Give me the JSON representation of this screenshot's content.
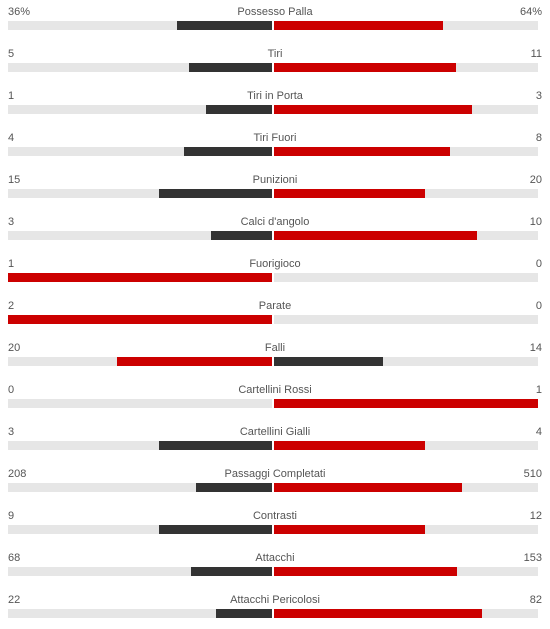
{
  "colors": {
    "leader": "#cc0000",
    "trailer": "#333333",
    "track": "#e6e6e6",
    "text": "#555555"
  },
  "stats": [
    {
      "name": "Possesso Palla",
      "home_label": "36%",
      "away_label": "64%",
      "home": 36,
      "away": 64
    },
    {
      "name": "Tiri",
      "home_label": "5",
      "away_label": "11",
      "home": 5,
      "away": 11
    },
    {
      "name": "Tiri in Porta",
      "home_label": "1",
      "away_label": "3",
      "home": 1,
      "away": 3
    },
    {
      "name": "Tiri Fuori",
      "home_label": "4",
      "away_label": "8",
      "home": 4,
      "away": 8
    },
    {
      "name": "Punizioni",
      "home_label": "15",
      "away_label": "20",
      "home": 15,
      "away": 20
    },
    {
      "name": "Calci d'angolo",
      "home_label": "3",
      "away_label": "10",
      "home": 3,
      "away": 10
    },
    {
      "name": "Fuorigioco",
      "home_label": "1",
      "away_label": "0",
      "home": 1,
      "away": 0
    },
    {
      "name": "Parate",
      "home_label": "2",
      "away_label": "0",
      "home": 2,
      "away": 0
    },
    {
      "name": "Falli",
      "home_label": "20",
      "away_label": "14",
      "home": 20,
      "away": 14
    },
    {
      "name": "Cartellini Rossi",
      "home_label": "0",
      "away_label": "1",
      "home": 0,
      "away": 1
    },
    {
      "name": "Cartellini Gialli",
      "home_label": "3",
      "away_label": "4",
      "home": 3,
      "away": 4
    },
    {
      "name": "Passaggi Completati",
      "home_label": "208",
      "away_label": "510",
      "home": 208,
      "away": 510
    },
    {
      "name": "Contrasti",
      "home_label": "9",
      "away_label": "12",
      "home": 9,
      "away": 12
    },
    {
      "name": "Attacchi",
      "home_label": "68",
      "away_label": "153",
      "home": 68,
      "away": 153
    },
    {
      "name": "Attacchi Pericolosi",
      "home_label": "22",
      "away_label": "82",
      "home": 22,
      "away": 82
    }
  ]
}
